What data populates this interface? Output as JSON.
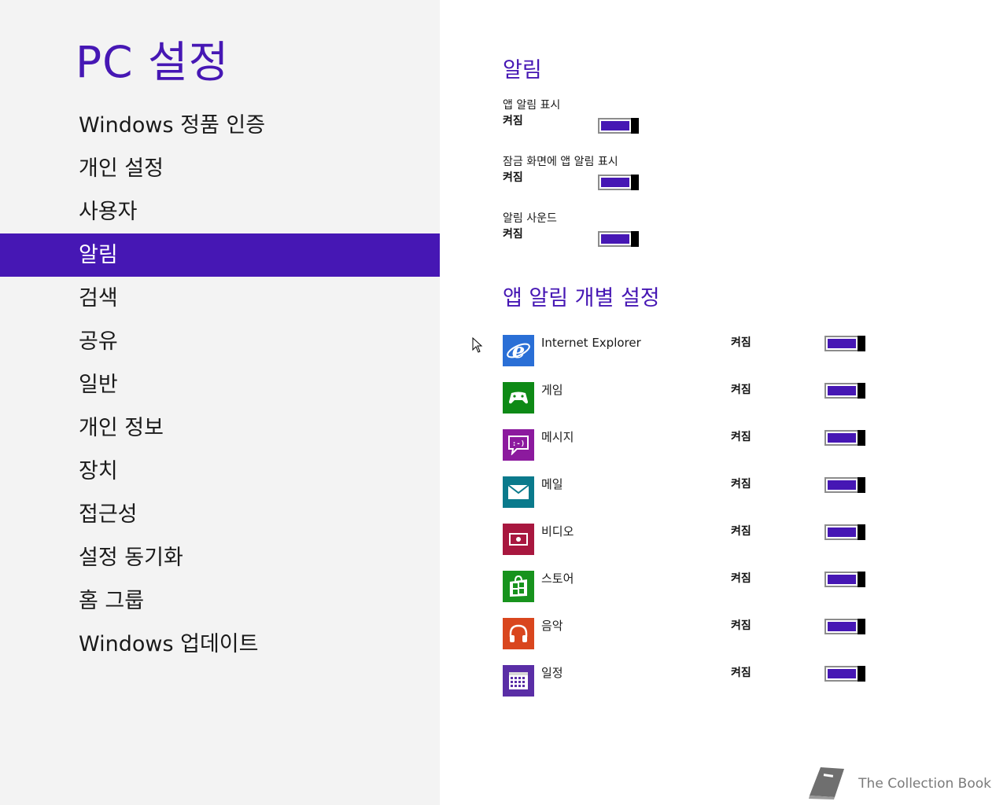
{
  "sidebar": {
    "title": "PC 설정",
    "items": [
      {
        "label": "Windows 정품 인증"
      },
      {
        "label": "개인 설정"
      },
      {
        "label": "사용자"
      },
      {
        "label": "알림",
        "selected": true
      },
      {
        "label": "검색"
      },
      {
        "label": "공유"
      },
      {
        "label": "일반"
      },
      {
        "label": "개인 정보"
      },
      {
        "label": "장치"
      },
      {
        "label": "접근성"
      },
      {
        "label": "설정 동기화"
      },
      {
        "label": "홈 그룹"
      },
      {
        "label": "Windows 업데이트"
      }
    ]
  },
  "notifications": {
    "heading": "알림",
    "settings": [
      {
        "label": "앱 알림 표시",
        "state": "켜짐"
      },
      {
        "label": "잠금 화면에 앱 알림 표시",
        "state": "켜짐"
      },
      {
        "label": "알림 사운드",
        "state": "켜짐"
      }
    ]
  },
  "per_app": {
    "heading": "앱 알림 개별 설정",
    "apps": [
      {
        "name": "Internet Explorer",
        "state": "켜짐",
        "icon": "internet-explorer-icon",
        "color": "#2a6fd6"
      },
      {
        "name": "게임",
        "state": "켜짐",
        "icon": "games-icon",
        "color": "#0e8a16"
      },
      {
        "name": "메시지",
        "state": "켜짐",
        "icon": "messaging-icon",
        "color": "#8c1a9e"
      },
      {
        "name": "메일",
        "state": "켜짐",
        "icon": "mail-icon",
        "color": "#0a7a8c"
      },
      {
        "name": "비디오",
        "state": "켜짐",
        "icon": "video-icon",
        "color": "#a8173f"
      },
      {
        "name": "스토어",
        "state": "켜짐",
        "icon": "store-icon",
        "color": "#17931d"
      },
      {
        "name": "음악",
        "state": "켜짐",
        "icon": "music-icon",
        "color": "#d9461e"
      },
      {
        "name": "일정",
        "state": "켜짐",
        "icon": "calendar-icon",
        "color": "#5a2ea6"
      }
    ]
  },
  "watermark": {
    "text": "The Collection Book"
  },
  "colors": {
    "accent": "#4617b4",
    "sidebar_bg": "#f3f3f3"
  }
}
